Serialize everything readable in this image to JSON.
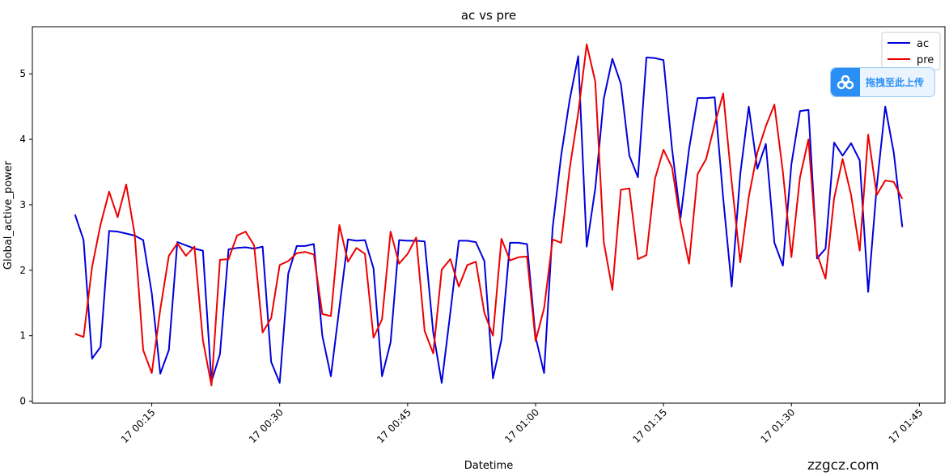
{
  "chart_data": {
    "type": "line",
    "title": "ac vs pre",
    "xlabel": "Datetime",
    "ylabel": "Global_active_power",
    "x_day": "17",
    "x_start": "00:06",
    "x_end": "01:43",
    "x_step_minutes": 1,
    "xlim": [
      "00:01",
      "01:48"
    ],
    "ylim": [
      -0.03,
      5.72
    ],
    "xticks": [
      "17 00:15",
      "17 00:30",
      "17 00:45",
      "17 01:00",
      "17 01:15",
      "17 01:30",
      "17 01:45"
    ],
    "xtick_minutes": [
      15,
      30,
      45,
      60,
      75,
      90,
      105
    ],
    "yticks": [
      0,
      1,
      2,
      3,
      4,
      5
    ],
    "grid": false,
    "legend_position": "top-right",
    "series": [
      {
        "name": "ac",
        "color": "#0000dd",
        "values": [
          2.85,
          2.46,
          0.65,
          0.83,
          2.6,
          2.59,
          2.56,
          2.53,
          2.46,
          1.65,
          0.42,
          0.78,
          2.43,
          2.38,
          2.33,
          2.3,
          0.3,
          0.72,
          2.32,
          2.34,
          2.35,
          2.33,
          2.36,
          0.6,
          0.28,
          1.95,
          2.37,
          2.37,
          2.4,
          1.0,
          0.38,
          1.43,
          2.47,
          2.45,
          2.46,
          2.03,
          0.38,
          0.9,
          2.46,
          2.45,
          2.45,
          2.44,
          1.05,
          0.28,
          1.35,
          2.45,
          2.45,
          2.43,
          2.14,
          0.35,
          0.94,
          2.42,
          2.42,
          2.4,
          0.98,
          0.43,
          2.65,
          3.75,
          4.6,
          5.27,
          2.36,
          3.25,
          4.62,
          5.23,
          4.85,
          3.75,
          3.42,
          5.25,
          5.24,
          5.21,
          3.85,
          2.8,
          3.85,
          4.63,
          4.63,
          4.64,
          3.1,
          1.75,
          3.47,
          4.5,
          3.55,
          3.93,
          2.42,
          2.07,
          3.62,
          4.43,
          4.45,
          2.18,
          2.33,
          3.95,
          3.75,
          3.94,
          3.68,
          1.67,
          3.28,
          4.5,
          3.8,
          2.66
        ]
      },
      {
        "name": "pre",
        "color": "#ee0000",
        "values": [
          1.03,
          0.98,
          2.05,
          2.7,
          3.2,
          2.81,
          3.31,
          2.55,
          0.78,
          0.43,
          1.4,
          2.22,
          2.41,
          2.22,
          2.36,
          0.93,
          0.24,
          2.16,
          2.17,
          2.53,
          2.59,
          2.38,
          1.05,
          1.27,
          2.08,
          2.14,
          2.26,
          2.28,
          2.24,
          1.33,
          1.3,
          2.69,
          2.13,
          2.34,
          2.25,
          0.97,
          1.25,
          2.59,
          2.1,
          2.25,
          2.5,
          1.07,
          0.73,
          2.01,
          2.17,
          1.75,
          2.08,
          2.13,
          1.35,
          1.0,
          2.48,
          2.15,
          2.2,
          2.21,
          0.92,
          1.42,
          2.47,
          2.42,
          3.55,
          4.4,
          5.45,
          4.88,
          2.43,
          1.7,
          3.23,
          3.25,
          2.17,
          2.23,
          3.4,
          3.84,
          3.57,
          2.73,
          2.1,
          3.47,
          3.7,
          4.23,
          4.7,
          3.35,
          2.12,
          3.12,
          3.8,
          4.2,
          4.53,
          3.5,
          2.2,
          3.42,
          4.0,
          2.25,
          1.87,
          3.1,
          3.7,
          3.15,
          2.3,
          4.07,
          3.15,
          3.37,
          3.35,
          3.09
        ]
      }
    ]
  },
  "overlay": {
    "upload_label": "拖拽至此上传",
    "upload_icon": "cloud-share-icon",
    "watermark": "zzgcz.com"
  }
}
